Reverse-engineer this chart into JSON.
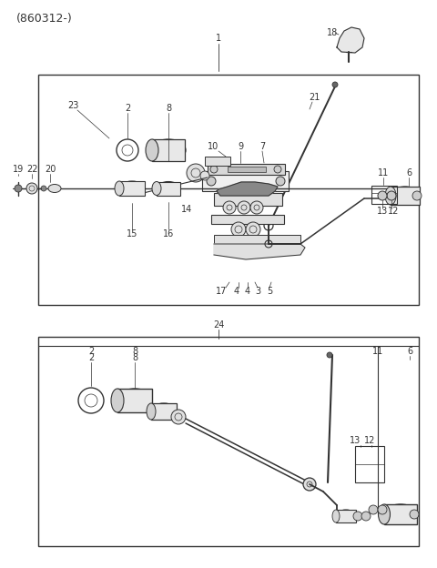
{
  "title": "(860312-)",
  "bg_color": "#ffffff",
  "line_color": "#333333",
  "fig_width": 4.8,
  "fig_height": 6.24,
  "dpi": 100
}
